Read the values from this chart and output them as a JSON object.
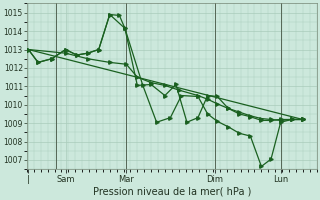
{
  "title": "Pression niveau de la mer( hPa )",
  "bg_color": "#cce8dc",
  "grid_color": "#aaccbb",
  "line_color": "#1a6020",
  "ylim": [
    1006.5,
    1015.5
  ],
  "yticks": [
    1007,
    1008,
    1009,
    1010,
    1011,
    1012,
    1013,
    1014,
    1015
  ],
  "xlim": [
    0,
    10.5
  ],
  "vlines": [
    1.05,
    3.6,
    6.8,
    9.2
  ],
  "xtick_pos": [
    0.05,
    1.4,
    3.6,
    6.8,
    9.2
  ],
  "xtick_labels": [
    "|",
    "Sam",
    "Mar",
    "Dim",
    "Lun"
  ],
  "series": [
    {
      "x": [
        0.05,
        0.4,
        0.9,
        1.4,
        1.8,
        2.2,
        2.6,
        3.0,
        3.35,
        3.55,
        4.0,
        4.5,
        5.0,
        5.4,
        5.8,
        6.2,
        6.55,
        6.9,
        7.3,
        7.7,
        8.1,
        8.5,
        8.85,
        9.2,
        9.6,
        10.0
      ],
      "y": [
        1013.0,
        1012.3,
        1012.5,
        1013.0,
        1012.7,
        1012.8,
        1013.0,
        1014.9,
        1014.85,
        1014.15,
        1011.05,
        1011.1,
        1010.5,
        1011.1,
        1009.05,
        1009.3,
        1010.5,
        1010.45,
        1009.8,
        1009.5,
        1009.35,
        1009.15,
        1009.15,
        1009.2,
        1009.2,
        1009.2
      ]
    },
    {
      "x": [
        0.05,
        10.0
      ],
      "y": [
        1013.0,
        1009.2
      ]
    },
    {
      "x": [
        0.05,
        1.4,
        2.2,
        3.0,
        3.6,
        4.0,
        4.5,
        5.0,
        5.5,
        6.2,
        6.55,
        6.9,
        7.3,
        7.7,
        8.1,
        8.5,
        8.85,
        9.2,
        9.6,
        10.0
      ],
      "y": [
        1013.0,
        1012.8,
        1012.5,
        1012.3,
        1012.2,
        1011.5,
        1011.2,
        1011.05,
        1010.8,
        1010.5,
        1010.3,
        1010.05,
        1009.8,
        1009.6,
        1009.4,
        1009.25,
        1009.2,
        1009.15,
        1009.2,
        1009.2
      ]
    },
    {
      "x": [
        0.05,
        0.4,
        0.9,
        1.4,
        1.8,
        2.2,
        2.6,
        3.0,
        3.55,
        4.2,
        4.7,
        5.2,
        5.6,
        6.2,
        6.55,
        6.9,
        7.3,
        7.7,
        8.1,
        8.5,
        8.85,
        9.2,
        9.6,
        10.0
      ],
      "y": [
        1013.0,
        1012.3,
        1012.5,
        1013.0,
        1012.7,
        1012.8,
        1013.0,
        1014.9,
        1014.15,
        1011.05,
        1009.05,
        1009.3,
        1010.5,
        1010.45,
        1009.5,
        1009.1,
        1008.8,
        1008.45,
        1008.3,
        1006.65,
        1007.05,
        1009.05,
        1009.2,
        1009.2
      ]
    }
  ]
}
